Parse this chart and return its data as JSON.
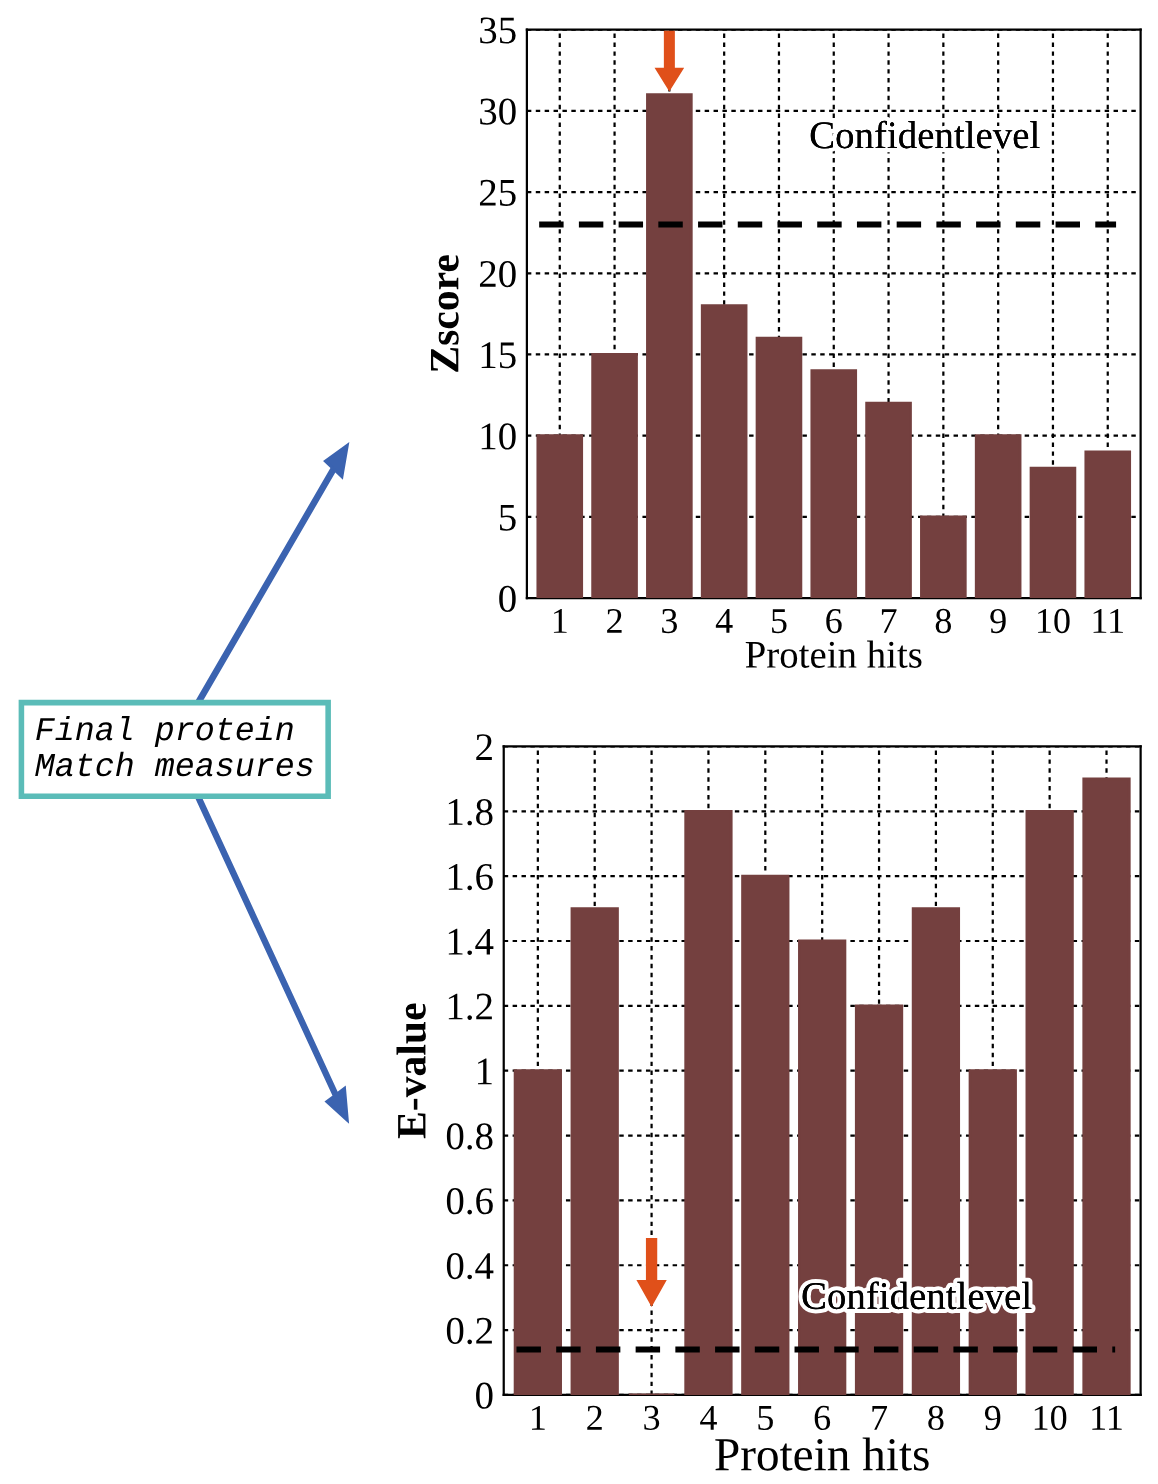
{
  "chart_data": [
    {
      "type": "bar",
      "xlabel": "Protein hits",
      "ylabel": "Zscore",
      "categories": [
        "1",
        "2",
        "3",
        "4",
        "5",
        "6",
        "7",
        "8",
        "9",
        "10",
        "11"
      ],
      "values": [
        10,
        15,
        31,
        18,
        16,
        14,
        12,
        5,
        10,
        8,
        9
      ],
      "color": "#74403f",
      "ylim": [
        0,
        35
      ],
      "yticks": [
        0,
        5,
        10,
        15,
        20,
        25,
        30,
        35
      ],
      "grid": true,
      "ref_lines": [
        {
          "axis": "y",
          "value": 23,
          "label": "Confidentlevel",
          "line_style": "dashed",
          "color": "#000000"
        }
      ],
      "annotations": [
        "Final protein\nMatch measures"
      ]
    },
    {
      "type": "bar",
      "xlabel": "Protein hits",
      "ylabel": "E-value",
      "categories": [
        "1",
        "2",
        "3",
        "4",
        "5",
        "6",
        "7",
        "8",
        "9",
        "10",
        "11"
      ],
      "values": [
        1,
        1.5,
        0,
        1.8,
        1.6,
        1.4,
        1.2,
        1.5,
        1,
        1.8,
        1.9
      ],
      "color": "#74403f",
      "ylim": [
        0,
        2
      ],
      "yticks": [
        0,
        0.2,
        0.4,
        0.6,
        0.8,
        1,
        1.2,
        1.4,
        1.6,
        1.8,
        2
      ],
      "grid": true,
      "ref_lines": [
        {
          "axis": "y",
          "value": 0.14,
          "label": "Confidentlevel",
          "line_style": "dashed",
          "color": "#000000"
        }
      ]
    }
  ]
}
